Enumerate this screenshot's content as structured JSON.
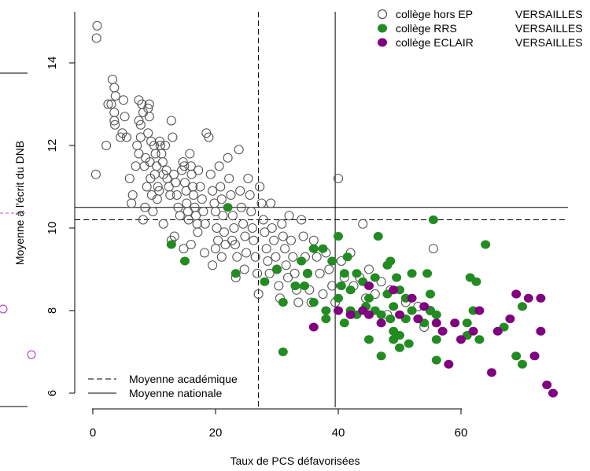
{
  "chart_data": {
    "type": "scatter",
    "title": "",
    "xlabel": "Taux de PCS défavorisées",
    "ylabel": "Moyenne à l'écrit du DNB",
    "xlim": [
      -2,
      77
    ],
    "ylim": [
      5.6,
      15.2
    ],
    "xticks": [
      0,
      20,
      40,
      60
    ],
    "yticks": [
      6,
      8,
      10,
      12,
      14
    ],
    "grid": false,
    "colors": {
      "hors_ep": "#555555",
      "rrs": "#228B22",
      "eclair": "#800080"
    },
    "reference_lines": {
      "academique": {
        "x": 27,
        "y": 10.2,
        "label": "Moyenne académique",
        "style": "dashed"
      },
      "nationale": {
        "x": 39.5,
        "y": 10.5,
        "label": "Moyenne nationale",
        "style": "solid"
      }
    },
    "legend": {
      "position": "top-right",
      "entries": [
        {
          "label": "collège hors EP",
          "region": "VERSAILLES",
          "marker": "open-circle"
        },
        {
          "label": "collège RRS",
          "region": "VERSAILLES",
          "marker": "filled-green"
        },
        {
          "label": "collège ECLAIR",
          "region": "VERSAILLES",
          "marker": "filled-purple"
        }
      ]
    },
    "series": [
      {
        "name": "collège hors EP",
        "points": [
          [
            0.7,
            14.9
          ],
          [
            0.6,
            14.6
          ],
          [
            0.5,
            11.3
          ],
          [
            2.2,
            12.0
          ],
          [
            2.5,
            13.0
          ],
          [
            3.0,
            13.0
          ],
          [
            3.2,
            13.6
          ],
          [
            3.5,
            13.4
          ],
          [
            3.5,
            12.6
          ],
          [
            3.7,
            13.2
          ],
          [
            3.5,
            12.8
          ],
          [
            3.6,
            12.5
          ],
          [
            4.5,
            12.2
          ],
          [
            4.8,
            12.3
          ],
          [
            5.0,
            13.1
          ],
          [
            5.5,
            12.2
          ],
          [
            5.2,
            12.7
          ],
          [
            6.0,
            11.2
          ],
          [
            6.3,
            10.6
          ],
          [
            6.5,
            10.8
          ],
          [
            7.0,
            11.5
          ],
          [
            7.2,
            12.0
          ],
          [
            7.5,
            11.8
          ],
          [
            7.8,
            12.2
          ],
          [
            7.5,
            12.6
          ],
          [
            7.8,
            12.5
          ],
          [
            7.5,
            13.1
          ],
          [
            8.0,
            13.0
          ],
          [
            8.2,
            12.8
          ],
          [
            8.4,
            11.5
          ],
          [
            8.6,
            11.7
          ],
          [
            8.8,
            11.0
          ],
          [
            8.5,
            10.5
          ],
          [
            8.2,
            10.2
          ],
          [
            9.0,
            12.9
          ],
          [
            9.2,
            13.0
          ],
          [
            9.2,
            12.7
          ],
          [
            9.0,
            12.3
          ],
          [
            9.5,
            12.1
          ],
          [
            9.3,
            11.6
          ],
          [
            9.4,
            11.2
          ],
          [
            9.6,
            10.8
          ],
          [
            9.8,
            10.4
          ],
          [
            10.0,
            12.0
          ],
          [
            10.2,
            11.8
          ],
          [
            10.4,
            11.5
          ],
          [
            10.1,
            11.3
          ],
          [
            10.6,
            11.0
          ],
          [
            10.8,
            10.9
          ],
          [
            10.5,
            10.7
          ],
          [
            10.9,
            12.1
          ],
          [
            11.0,
            12.0
          ],
          [
            11.2,
            11.8
          ],
          [
            11.5,
            11.3
          ],
          [
            11.4,
            11.6
          ],
          [
            11.8,
            12.0
          ],
          [
            12.0,
            11.4
          ],
          [
            12.1,
            11.2
          ],
          [
            12.4,
            11.0
          ],
          [
            12.6,
            10.8
          ],
          [
            12.8,
            12.6
          ],
          [
            13.0,
            12.2
          ],
          [
            13.2,
            11.3
          ],
          [
            13.5,
            11.1
          ],
          [
            13.7,
            10.8
          ],
          [
            13.9,
            10.5
          ],
          [
            14.2,
            10.3
          ],
          [
            14.5,
            11.4
          ],
          [
            14.7,
            11.6
          ],
          [
            14.9,
            11.5
          ],
          [
            15.0,
            11.1
          ],
          [
            15.2,
            10.9
          ],
          [
            15.3,
            10.6
          ],
          [
            15.5,
            10.4
          ],
          [
            15.6,
            10.2
          ],
          [
            15.8,
            11.8
          ],
          [
            16.0,
            11.5
          ],
          [
            16.1,
            11.3
          ],
          [
            16.3,
            11.0
          ],
          [
            16.4,
            10.8
          ],
          [
            16.6,
            10.5
          ],
          [
            16.8,
            10.3
          ],
          [
            17.0,
            10.1
          ],
          [
            17.1,
            9.9
          ],
          [
            17.2,
            11.4
          ],
          [
            17.5,
            11.0
          ],
          [
            17.8,
            10.7
          ],
          [
            18.0,
            10.4
          ],
          [
            18.3,
            10.1
          ],
          [
            18.5,
            12.3
          ],
          [
            18.9,
            12.2
          ],
          [
            19.2,
            11.3
          ],
          [
            19.5,
            10.9
          ],
          [
            19.8,
            10.6
          ],
          [
            20.0,
            10.4
          ],
          [
            20.2,
            10.0
          ],
          [
            20.4,
            9.7
          ],
          [
            20.6,
            11.5
          ],
          [
            20.8,
            11.0
          ],
          [
            21.0,
            10.7
          ],
          [
            21.2,
            10.3
          ],
          [
            21.4,
            9.9
          ],
          [
            21.6,
            9.6
          ],
          [
            22.0,
            11.7
          ],
          [
            22.2,
            11.2
          ],
          [
            22.5,
            10.8
          ],
          [
            22.8,
            10.3
          ],
          [
            23.0,
            10.0
          ],
          [
            23.2,
            9.6
          ],
          [
            23.5,
            9.3
          ],
          [
            23.8,
            11.9
          ],
          [
            24.0,
            10.9
          ],
          [
            24.2,
            10.5
          ],
          [
            24.5,
            10.1
          ],
          [
            24.8,
            9.8
          ],
          [
            25.0,
            9.4
          ],
          [
            25.3,
            11.2
          ],
          [
            25.6,
            10.8
          ],
          [
            25.8,
            10.4
          ],
          [
            26.0,
            10.0
          ],
          [
            26.2,
            9.7
          ],
          [
            26.5,
            9.3
          ],
          [
            26.8,
            8.9
          ],
          [
            27.0,
            8.4
          ],
          [
            27.2,
            11.0
          ],
          [
            27.5,
            10.6
          ],
          [
            27.8,
            10.2
          ],
          [
            28.0,
            9.9
          ],
          [
            28.3,
            9.5
          ],
          [
            28.5,
            9.2
          ],
          [
            28.8,
            8.9
          ],
          [
            29.0,
            10.6
          ],
          [
            29.2,
            10.0
          ],
          [
            29.5,
            9.7
          ],
          [
            29.8,
            9.3
          ],
          [
            30.0,
            9.0
          ],
          [
            30.3,
            8.6
          ],
          [
            30.5,
            8.3
          ],
          [
            30.8,
            10.1
          ],
          [
            31.0,
            9.8
          ],
          [
            31.3,
            9.5
          ],
          [
            31.5,
            9.1
          ],
          [
            31.8,
            8.8
          ],
          [
            32.0,
            10.3
          ],
          [
            32.3,
            9.7
          ],
          [
            32.6,
            9.3
          ],
          [
            32.9,
            8.9
          ],
          [
            33.2,
            8.5
          ],
          [
            33.5,
            8.2
          ],
          [
            34.0,
            10.2
          ],
          [
            34.3,
            9.8
          ],
          [
            34.6,
            9.3
          ],
          [
            35.0,
            8.9
          ],
          [
            35.3,
            8.5
          ],
          [
            35.6,
            8.2
          ],
          [
            36.0,
            9.7
          ],
          [
            36.5,
            9.3
          ],
          [
            37.0,
            8.9
          ],
          [
            37.5,
            8.4
          ],
          [
            38.0,
            9.4
          ],
          [
            38.5,
            9.0
          ],
          [
            39.0,
            8.6
          ],
          [
            39.5,
            8.2
          ],
          [
            40.0,
            11.2
          ],
          [
            40.5,
            9.2
          ],
          [
            41.0,
            8.8
          ],
          [
            42.0,
            9.4
          ],
          [
            42.5,
            8.6
          ],
          [
            43.5,
            8.8
          ],
          [
            44.0,
            10.1
          ],
          [
            44.5,
            8.3
          ],
          [
            45.0,
            9.0
          ],
          [
            46.0,
            8.4
          ],
          [
            47.0,
            8.7
          ],
          [
            48.0,
            7.9
          ],
          [
            48.5,
            8.5
          ],
          [
            51.0,
            8.2
          ],
          [
            53.0,
            8.1
          ],
          [
            54.0,
            7.6
          ],
          [
            55.0,
            8.0
          ],
          [
            55.5,
            9.5
          ],
          [
            11.5,
            10.1
          ],
          [
            12.8,
            9.7
          ],
          [
            13.3,
            9.8
          ],
          [
            14.8,
            9.5
          ],
          [
            16.0,
            9.6
          ],
          [
            18.2,
            9.4
          ],
          [
            19.5,
            9.1
          ],
          [
            21.0,
            9.3
          ],
          [
            23.3,
            8.8
          ],
          [
            24.7,
            9.0
          ],
          [
            22.7,
            9.7
          ],
          [
            20.0,
            9.5
          ]
        ]
      },
      {
        "name": "collège RRS",
        "points": [
          [
            22,
            10.5
          ],
          [
            12.8,
            9.6
          ],
          [
            15,
            9.2
          ],
          [
            23.3,
            8.9
          ],
          [
            28,
            8.7
          ],
          [
            30,
            9.0
          ],
          [
            31,
            8.2
          ],
          [
            31,
            7.0
          ],
          [
            33,
            8.6
          ],
          [
            34,
            9.2
          ],
          [
            34.5,
            8.6
          ],
          [
            35,
            8.9
          ],
          [
            36,
            9.5
          ],
          [
            36,
            8.2
          ],
          [
            37.5,
            9.5
          ],
          [
            38,
            8.0
          ],
          [
            38,
            7.8
          ],
          [
            39,
            9.2
          ],
          [
            40,
            9.8
          ],
          [
            40,
            8.3
          ],
          [
            40.5,
            8.6
          ],
          [
            41,
            8.9
          ],
          [
            41,
            7.7
          ],
          [
            41.5,
            9.3
          ],
          [
            42,
            8.5
          ],
          [
            42,
            8.0
          ],
          [
            43,
            8.9
          ],
          [
            43,
            7.9
          ],
          [
            44,
            8.7
          ],
          [
            44.5,
            8.1
          ],
          [
            45,
            8.3
          ],
          [
            45,
            7.3
          ],
          [
            46,
            8.8
          ],
          [
            46,
            8.0
          ],
          [
            46.5,
            9.8
          ],
          [
            47,
            6.9
          ],
          [
            47,
            7.9
          ],
          [
            48,
            8.4
          ],
          [
            48,
            9.1
          ],
          [
            48.5,
            9.2
          ],
          [
            48.5,
            7.8
          ],
          [
            49,
            8.1
          ],
          [
            49,
            7.5
          ],
          [
            49,
            7.3
          ],
          [
            49.5,
            8.8
          ],
          [
            50,
            8.5
          ],
          [
            50,
            7.4
          ],
          [
            50,
            7.1
          ],
          [
            51,
            8.3
          ],
          [
            51,
            7.8
          ],
          [
            51.5,
            7.2
          ],
          [
            52,
            8.9
          ],
          [
            52,
            8.0
          ],
          [
            53,
            7.8
          ],
          [
            54,
            7.7
          ],
          [
            54.5,
            8.9
          ],
          [
            55,
            8.0
          ],
          [
            55,
            8.4
          ],
          [
            55.5,
            10.2
          ],
          [
            56,
            7.3
          ],
          [
            56,
            6.8
          ],
          [
            56,
            7.9
          ],
          [
            61,
            7.7
          ],
          [
            61,
            7.4
          ],
          [
            61.5,
            8.8
          ],
          [
            62,
            8.0
          ],
          [
            62.5,
            8.7
          ],
          [
            63,
            7.3
          ],
          [
            64,
            9.6
          ],
          [
            67,
            7.6
          ],
          [
            69,
            6.9
          ],
          [
            70,
            6.7
          ],
          [
            70,
            8.1
          ]
        ]
      },
      {
        "name": "collège ECLAIR",
        "points": [
          [
            36,
            7.6
          ],
          [
            40,
            8.0
          ],
          [
            42,
            7.9
          ],
          [
            44,
            8.0
          ],
          [
            45,
            8.6
          ],
          [
            45,
            7.9
          ],
          [
            47,
            7.7
          ],
          [
            49,
            8.5
          ],
          [
            50,
            7.9
          ],
          [
            52,
            8.3
          ],
          [
            53,
            7.8
          ],
          [
            54,
            8.1
          ],
          [
            56,
            7.7
          ],
          [
            57,
            7.5
          ],
          [
            58,
            6.7
          ],
          [
            59,
            7.7
          ],
          [
            60,
            7.3
          ],
          [
            62,
            7.5
          ],
          [
            63,
            8.0
          ],
          [
            65,
            6.5
          ],
          [
            66,
            7.5
          ],
          [
            68,
            7.8
          ],
          [
            69,
            8.4
          ],
          [
            71,
            8.3
          ],
          [
            72,
            6.9
          ],
          [
            73,
            8.3
          ],
          [
            73,
            7.5
          ],
          [
            74,
            6.2
          ],
          [
            75,
            6.0
          ]
        ]
      }
    ]
  }
}
